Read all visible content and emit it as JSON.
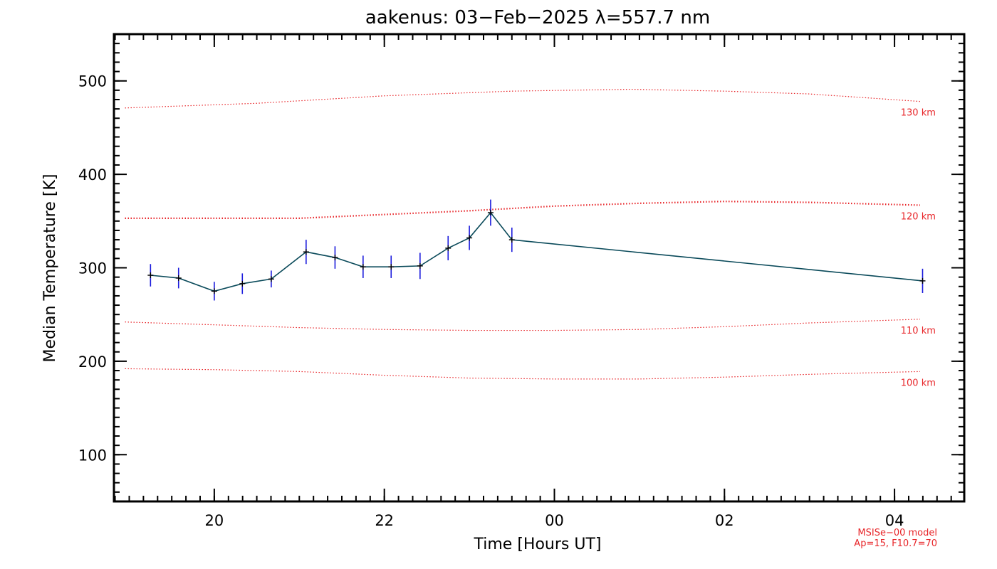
{
  "chart_data": {
    "type": "line",
    "title": "aakenus: 03−Feb−2025 λ=557.7 nm",
    "xlabel": "Time [Hours UT]",
    "ylabel": "Median Temperature [K]",
    "x_tick_labels": [
      "20",
      "22",
      "00",
      "02",
      "04"
    ],
    "y_tick_labels": [
      "100",
      "200",
      "300",
      "400",
      "500"
    ],
    "x_ticks_hours": [
      20,
      22,
      24,
      26,
      28
    ],
    "y_ticks": [
      100,
      200,
      300,
      400,
      500
    ],
    "xlim": [
      18.82,
      28.82
    ],
    "ylim": [
      50,
      550
    ],
    "series": [
      {
        "color": "#0a4a5a",
        "errorbar_color": "#1a1adc",
        "x_hours": [
          19.25,
          19.58,
          20.0,
          20.33,
          20.67,
          21.08,
          21.42,
          21.75,
          22.08,
          22.42,
          22.75,
          23.0,
          23.25,
          23.5,
          28.33
        ],
        "values": [
          292,
          289,
          275,
          283,
          288,
          317,
          311,
          301,
          301,
          302,
          321,
          332,
          359,
          330,
          286
        ],
        "errors": [
          12,
          11,
          10,
          11,
          9,
          13,
          12,
          12,
          12,
          14,
          13,
          13,
          14,
          13,
          13
        ]
      }
    ],
    "model_curves": [
      {
        "label": "130 km",
        "color": "#e8262a",
        "x_hours": [
          18.95,
          20.5,
          22.0,
          23.5,
          24.9,
          26.0,
          27.0,
          28.3
        ],
        "values": [
          471,
          476,
          484,
          489,
          491,
          489,
          486,
          478
        ]
      },
      {
        "label": "120 km",
        "color": "#e8262a",
        "x_hours": [
          18.95,
          20.0,
          21.0,
          22.0,
          23.0,
          24.0,
          25.0,
          26.0,
          27.0,
          28.3
        ],
        "values": [
          353,
          353,
          353,
          357,
          361,
          366,
          369,
          371,
          370,
          367
        ]
      },
      {
        "label": "110 km",
        "color": "#e8262a",
        "x_hours": [
          18.95,
          20.0,
          21.0,
          22.0,
          23.0,
          24.0,
          25.0,
          26.0,
          27.0,
          28.3
        ],
        "values": [
          242,
          239,
          236,
          234,
          233,
          233,
          234,
          237,
          241,
          245
        ]
      },
      {
        "label": "100 km",
        "color": "#e8262a",
        "x_hours": [
          18.95,
          20.0,
          21.0,
          22.0,
          23.0,
          24.0,
          25.0,
          26.0,
          27.0,
          28.3
        ],
        "values": [
          192,
          191,
          189,
          185,
          182,
          181,
          181,
          183,
          186,
          189
        ]
      }
    ],
    "notes": [
      "MSISe−00 model",
      "Ap=15, F10.7=70"
    ],
    "grid": false,
    "legend": "none"
  }
}
